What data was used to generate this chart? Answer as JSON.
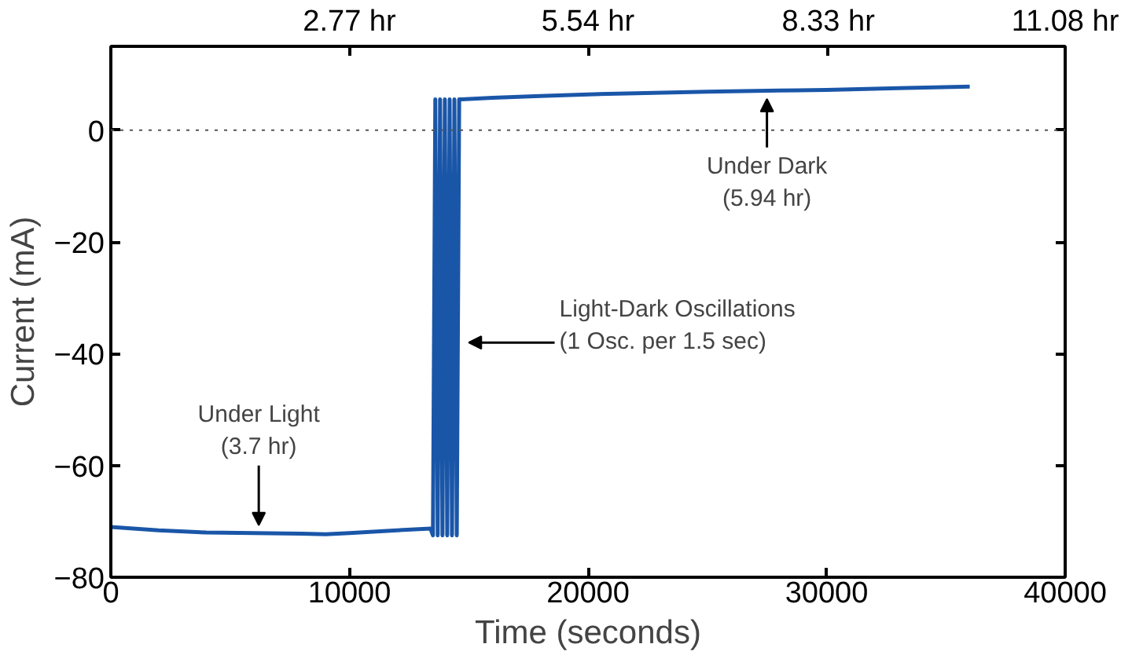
{
  "chart_data": {
    "type": "line",
    "xlabel": "Time (seconds)",
    "ylabel": "Current (mA)",
    "x": [
      0,
      2000,
      4000,
      6000,
      8000,
      9000,
      10000,
      12000,
      13400,
      13500,
      13600,
      13700,
      13800,
      13900,
      14000,
      14100,
      14200,
      14300,
      14400,
      14500,
      14600,
      14700,
      16000,
      18000,
      20000,
      22000,
      25000,
      28000,
      30000,
      33000,
      36000
    ],
    "series": [
      {
        "color": "#1a56a8",
        "values": [
          -71,
          -71.6,
          -72,
          -72.1,
          -72.2,
          -72.3,
          -72.1,
          -71.6,
          -71.3,
          -72.5,
          5.5,
          -72.5,
          5.5,
          -72.5,
          5.5,
          -72.5,
          5.5,
          -72.5,
          5.5,
          -72.5,
          5.5,
          5.5,
          5.8,
          6.1,
          6.4,
          6.6,
          6.9,
          7.1,
          7.2,
          7.5,
          7.8
        ]
      }
    ],
    "xlim": [
      0,
      40000
    ],
    "xticks": [
      0,
      10000,
      20000,
      30000,
      40000
    ],
    "ylim": [
      -80,
      15
    ],
    "yticks": [
      -80,
      -60,
      -40,
      -20,
      0
    ],
    "x2lim": [
      0,
      11.08
    ],
    "x2ticks": [
      {
        "value": 2.77,
        "label": "2.77 hr"
      },
      {
        "value": 5.54,
        "label": "5.54 hr"
      },
      {
        "value": 8.33,
        "label": "8.33 hr"
      },
      {
        "value": 11.08,
        "label": "11.08 hr"
      }
    ],
    "ref_lines": [
      {
        "axis": "y",
        "value": 0,
        "color": "#555555",
        "line_style": "dotted"
      }
    ],
    "annotations": [
      {
        "text": "Under Light\n(3.7 hr)",
        "x": 6200,
        "y": -72
      },
      {
        "text": "Light-Dark Oscillations\n(1 Osc. per 1.5 sec)",
        "x": 14800,
        "y": -38
      },
      {
        "text": "Under Dark\n(5.94 hr)",
        "x": 27500,
        "y": 6.9
      }
    ],
    "grid": false,
    "marker": "none",
    "line_style": "solid"
  }
}
